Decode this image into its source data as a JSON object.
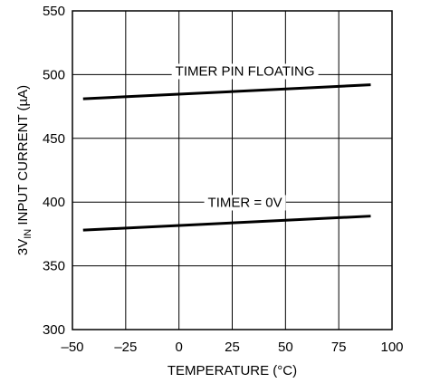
{
  "chart_data": {
    "type": "line",
    "xlabel": "TEMPERATURE (°C)",
    "ylabel_parts": [
      "3V",
      "IN",
      " INPUT CURRENT (µA)"
    ],
    "xlim": [
      -50,
      100
    ],
    "ylim": [
      300,
      550
    ],
    "xticks": [
      -50,
      -25,
      0,
      25,
      50,
      75,
      100
    ],
    "xtick_labels": [
      "–50",
      "–25",
      "0",
      "25",
      "50",
      "75",
      "100"
    ],
    "yticks": [
      300,
      350,
      400,
      450,
      500,
      550
    ],
    "ytick_labels": [
      "300",
      "350",
      "400",
      "450",
      "500",
      "550"
    ],
    "grid": true,
    "series": [
      {
        "name": "TIMER PIN FLOATING",
        "x": [
          -45,
          90
        ],
        "y": [
          481,
          492
        ]
      },
      {
        "name": "TIMER = 0V",
        "x": [
          -45,
          90
        ],
        "y": [
          378,
          389
        ]
      }
    ]
  }
}
